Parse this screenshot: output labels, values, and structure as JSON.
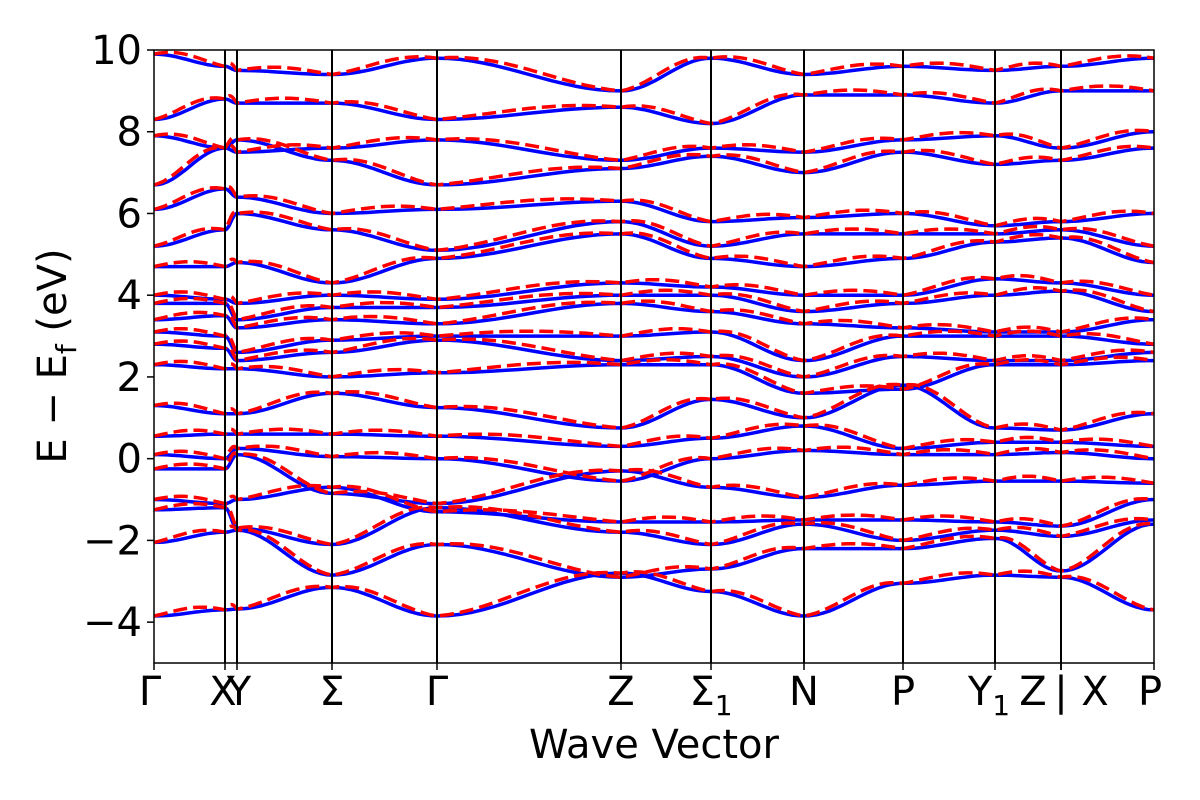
{
  "chart_data": {
    "type": "line",
    "title": "",
    "xlabel": "Wave Vector",
    "ylabel": "E − E_f (eV)",
    "ylabel_main": "E  −  E",
    "ylabel_sub": "f",
    "ylabel_unit": " (eV)",
    "ylim": [
      -5,
      10
    ],
    "yticks": [
      "−4",
      "−2",
      "0",
      "2",
      "4",
      "6",
      "8",
      "10"
    ],
    "ytick_values": [
      -4,
      -2,
      0,
      2,
      4,
      6,
      8,
      10
    ],
    "grid": false,
    "legend": "none",
    "colors": {
      "series_a": "#0000ff",
      "series_b": "#ff0000"
    },
    "styles": {
      "series_a": "solid",
      "series_b": "dashed"
    },
    "kpath_range": [
      0,
      10.0
    ],
    "kpoints": [
      {
        "label": "Γ",
        "x": 0.0
      },
      {
        "label": "X",
        "x": 0.71
      },
      {
        "label": "Y",
        "x": 0.83
      },
      {
        "label": "Σ",
        "x": 1.78
      },
      {
        "label": "Γ",
        "x": 2.83
      },
      {
        "label": "Z",
        "x": 4.67
      },
      {
        "label": "Σ",
        "sub": "1",
        "x": 5.57
      },
      {
        "label": "N",
        "x": 6.5
      },
      {
        "label": "P",
        "x": 7.49
      },
      {
        "label": "Y",
        "sub": "1",
        "x": 8.41
      },
      {
        "label": "Z",
        "x": 9.07
      },
      {
        "label": "|",
        "x": 9.07
      },
      {
        "label": "X",
        "x": 9.07
      },
      {
        "label": "P",
        "x": 10.0
      }
    ],
    "segment_x": [
      0.0,
      0.71,
      0.83,
      1.78,
      2.83,
      4.67,
      5.57,
      6.5,
      7.49,
      8.41,
      9.07,
      10.0
    ],
    "bands": [
      [
        -3.85,
        -3.7,
        -3.68,
        -3.15,
        -3.85,
        -2.8,
        -3.25,
        -3.85,
        -3.05,
        -2.85,
        -2.9,
        -3.7,
        -3.3
      ],
      [
        -2.05,
        -1.8,
        -1.75,
        -2.85,
        -2.1,
        -2.9,
        -2.7,
        -2.2,
        -2.2,
        -1.95,
        -2.75,
        -1.6,
        -2.0
      ],
      [
        -1.25,
        -1.2,
        -1.7,
        -2.1,
        -1.2,
        -1.8,
        -2.1,
        -1.6,
        -2.0,
        -1.75,
        -1.9,
        -1.5,
        -2.0
      ],
      [
        -1.0,
        -1.1,
        -1.0,
        -0.7,
        -1.3,
        -1.55,
        -1.55,
        -1.5,
        -1.5,
        -1.55,
        -1.65,
        -1.0,
        -0.8
      ],
      [
        -0.25,
        -0.25,
        0.1,
        -0.85,
        -1.1,
        -0.3,
        -0.7,
        -0.95,
        -0.65,
        -0.55,
        -0.55,
        -0.6,
        -0.5
      ],
      [
        0.1,
        0.0,
        0.25,
        0.05,
        0.0,
        -0.55,
        0.0,
        0.2,
        0.1,
        0.1,
        0.15,
        0.0,
        0.0
      ],
      [
        0.55,
        0.6,
        0.6,
        0.6,
        0.55,
        0.3,
        0.5,
        0.8,
        0.25,
        0.4,
        0.4,
        0.3,
        0.4
      ],
      [
        1.3,
        1.1,
        1.1,
        1.6,
        1.25,
        0.75,
        1.45,
        1.0,
        1.8,
        0.75,
        0.7,
        1.1,
        1.4
      ],
      [
        2.3,
        2.2,
        2.2,
        2.0,
        2.1,
        2.3,
        2.3,
        1.6,
        1.7,
        2.3,
        2.3,
        2.4,
        1.6
      ],
      [
        2.8,
        2.7,
        2.4,
        2.6,
        2.9,
        2.4,
        2.5,
        2.0,
        2.5,
        2.4,
        2.4,
        2.6,
        2.6
      ],
      [
        3.1,
        3.0,
        2.6,
        2.9,
        3.0,
        3.0,
        3.1,
        2.4,
        3.0,
        3.0,
        3.0,
        2.8,
        3.0
      ],
      [
        3.4,
        3.5,
        3.2,
        3.4,
        3.3,
        3.8,
        3.6,
        3.3,
        3.2,
        3.1,
        3.1,
        3.4,
        3.3
      ],
      [
        3.8,
        3.8,
        3.4,
        3.7,
        3.7,
        4.0,
        4.0,
        3.6,
        3.8,
        4.0,
        4.1,
        3.6,
        3.8
      ],
      [
        4.0,
        3.9,
        3.8,
        4.0,
        3.9,
        4.3,
        4.2,
        4.0,
        4.0,
        4.4,
        4.3,
        4.0,
        4.2
      ],
      [
        4.7,
        4.7,
        4.8,
        4.3,
        4.9,
        5.5,
        4.9,
        4.7,
        4.9,
        5.3,
        5.4,
        4.8,
        5.0
      ],
      [
        5.2,
        5.6,
        6.0,
        5.6,
        5.1,
        5.8,
        5.2,
        5.5,
        5.5,
        5.5,
        5.6,
        5.2,
        5.5
      ],
      [
        6.1,
        6.6,
        6.4,
        6.0,
        6.1,
        6.3,
        5.8,
        5.9,
        6.0,
        5.7,
        5.8,
        6.0,
        6.0
      ],
      [
        6.7,
        7.6,
        7.8,
        7.3,
        6.7,
        7.1,
        7.4,
        7.0,
        7.5,
        7.2,
        7.3,
        7.6,
        7.7
      ],
      [
        7.9,
        7.6,
        7.5,
        7.6,
        7.8,
        7.3,
        7.6,
        7.5,
        7.8,
        7.9,
        7.6,
        8.0,
        7.8
      ],
      [
        8.3,
        8.8,
        8.7,
        8.7,
        8.3,
        8.6,
        8.2,
        8.9,
        8.9,
        8.7,
        9.0,
        9.0,
        9.0
      ],
      [
        9.9,
        9.6,
        9.5,
        9.4,
        9.8,
        9.0,
        9.8,
        9.4,
        9.6,
        9.5,
        9.6,
        9.8,
        9.6
      ]
    ]
  }
}
